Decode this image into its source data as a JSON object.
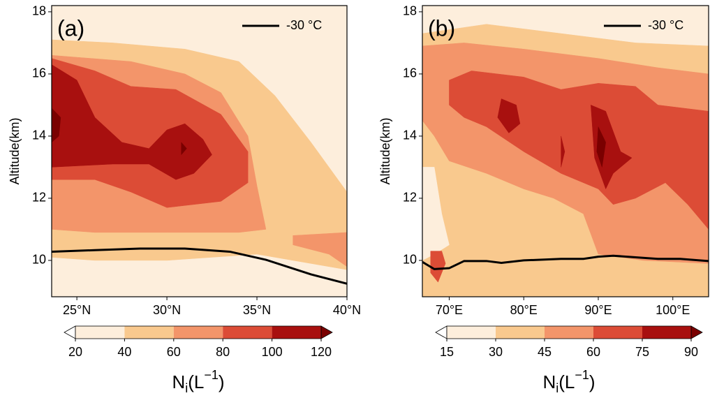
{
  "chart_data": [
    {
      "type": "contour",
      "panel_label": "(a)",
      "ylabel": "Altitude(km)",
      "xlim": [
        23.6,
        40
      ],
      "ylim": [
        8.83,
        18.2
      ],
      "xticks": [
        {
          "value": 25,
          "label": "25°N"
        },
        {
          "value": 30,
          "label": "30°N"
        },
        {
          "value": 35,
          "label": "35°N"
        },
        {
          "value": 40,
          "label": "40°N"
        }
      ],
      "yticks": [
        10,
        12,
        14,
        16,
        18
      ],
      "levels": [
        20,
        40,
        60,
        80,
        100,
        120
      ],
      "colors": [
        "#fdeedc",
        "#f9c98e",
        "#f3956a",
        "#dc4c36",
        "#a8100f"
      ],
      "under_color": "#ffffff",
      "over_color": "#7a0000",
      "colorbar_label": {
        "text": "N",
        "subscript": "i",
        "unit": "(L",
        "exponent": "−1",
        "close": ")"
      },
      "regions": [
        {
          "level": 0,
          "x": [
            23.6,
            40,
            40,
            23.6
          ],
          "y": [
            18.2,
            18.2,
            8.83,
            8.83
          ]
        },
        {
          "level": 1,
          "x": [
            23.6,
            27,
            31,
            34,
            36,
            38,
            40,
            40,
            38,
            35,
            30,
            26,
            23.6
          ],
          "y": [
            17.1,
            17.0,
            16.8,
            16.4,
            15.3,
            13.8,
            12.2,
            9.7,
            9.9,
            10.2,
            10.0,
            10.0,
            10.1
          ]
        },
        {
          "level": 2,
          "x": [
            23.6,
            28,
            31,
            33,
            34.5,
            35,
            35.5,
            34,
            30,
            26,
            23.6
          ],
          "y": [
            16.6,
            16.4,
            16.0,
            15.4,
            14.0,
            12.4,
            11.0,
            10.9,
            10.9,
            10.9,
            11.0
          ]
        },
        {
          "level": 2,
          "x": [
            37,
            40,
            40,
            39,
            37
          ],
          "y": [
            10.8,
            10.9,
            9.8,
            10.2,
            10.5
          ]
        },
        {
          "level": 3,
          "x": [
            23.6,
            26,
            28,
            30.5,
            33,
            34.5,
            34.5,
            33,
            30,
            28,
            26,
            23.6
          ],
          "y": [
            16.5,
            16.1,
            15.6,
            15.5,
            14.7,
            13.5,
            12.5,
            11.9,
            11.7,
            12.2,
            12.6,
            12.6
          ]
        },
        {
          "level": 4,
          "x": [
            23.6,
            25,
            26,
            27.5,
            29,
            30,
            31,
            32,
            32.5,
            31.5,
            30.5,
            29,
            27,
            23.6
          ],
          "y": [
            16.3,
            15.8,
            14.6,
            13.8,
            13.6,
            14.2,
            14.4,
            13.9,
            13.4,
            12.8,
            12.6,
            13.1,
            13.1,
            13.0
          ]
        },
        {
          "level": 5,
          "x": [
            23.6,
            24.1,
            24.0,
            23.6
          ],
          "y": [
            14.9,
            14.6,
            14.0,
            13.8
          ]
        },
        {
          "level": 5,
          "x": [
            30.8,
            31.1,
            30.8
          ],
          "y": [
            13.8,
            13.6,
            13.4
          ]
        }
      ],
      "legend": "upper right",
      "series": [
        {
          "name": "-30 °C",
          "color": "#000000",
          "x": [
            23.6,
            26,
            28.5,
            31,
            33.5,
            35.5,
            38,
            40
          ],
          "values": [
            10.28,
            10.33,
            10.38,
            10.38,
            10.28,
            10.02,
            9.55,
            9.25
          ]
        }
      ]
    },
    {
      "type": "contour",
      "panel_label": "(b)",
      "ylabel": "Altitude(km)",
      "xlim": [
        66.4,
        104.8
      ],
      "ylim": [
        8.83,
        18.2
      ],
      "xticks": [
        {
          "value": 70,
          "label": "70°E"
        },
        {
          "value": 80,
          "label": "80°E"
        },
        {
          "value": 90,
          "label": "90°E"
        },
        {
          "value": 100,
          "label": "100°E"
        }
      ],
      "yticks": [
        10,
        12,
        14,
        16,
        18
      ],
      "levels": [
        15,
        30,
        45,
        60,
        75,
        90
      ],
      "colors": [
        "#fdeedc",
        "#f9c98e",
        "#f3956a",
        "#dc4c36",
        "#a8100f"
      ],
      "under_color": "#ffffff",
      "over_color": "#7a0000",
      "colorbar_label": {
        "text": "N",
        "subscript": "i",
        "unit": "(L",
        "exponent": "−1",
        "close": ")"
      },
      "regions": [
        {
          "level": 0,
          "x": [
            66.4,
            104.8,
            104.8,
            66.4
          ],
          "y": [
            18.2,
            18.2,
            8.83,
            8.83
          ]
        },
        {
          "level": 1,
          "x": [
            66.4,
            75,
            85,
            95,
            104.8,
            104.8,
            66.4
          ],
          "y": [
            17.3,
            17.6,
            17.3,
            17.0,
            16.9,
            8.83,
            8.83
          ]
        },
        {
          "level": 0,
          "x": [
            66.4,
            68,
            69,
            70,
            68,
            66.4
          ],
          "y": [
            13.0,
            13.0,
            11.5,
            10.5,
            10.2,
            10.0
          ]
        },
        {
          "level": 2,
          "x": [
            66.4,
            72,
            80,
            90,
            98,
            104.8,
            104.8,
            96,
            90,
            88,
            84,
            80,
            75,
            70,
            68,
            66.4
          ],
          "y": [
            16.9,
            17.0,
            16.8,
            16.5,
            16.2,
            16.0,
            9.9,
            10.0,
            10.2,
            11.5,
            12.0,
            12.3,
            12.8,
            13.2,
            14.0,
            14.5
          ]
        },
        {
          "level": 3,
          "x": [
            70,
            73,
            80,
            85,
            90,
            95,
            98,
            104.8,
            104.8,
            102,
            99,
            95,
            92,
            90,
            85,
            80,
            75,
            72,
            70
          ],
          "y": [
            15.8,
            16.1,
            15.9,
            15.5,
            15.7,
            15.6,
            15.0,
            14.8,
            11.0,
            11.8,
            12.5,
            12.0,
            11.8,
            12.3,
            12.8,
            13.5,
            14.3,
            14.6,
            15.0
          ]
        },
        {
          "level": 3,
          "x": [
            67.5,
            69,
            69.5,
            68.5,
            67.5
          ],
          "y": [
            10.3,
            10.3,
            9.9,
            9.3,
            9.6
          ]
        },
        {
          "level": 4,
          "x": [
            77,
            79,
            79.5,
            78,
            76.5
          ],
          "y": [
            15.2,
            15.0,
            14.4,
            14.1,
            14.6
          ]
        },
        {
          "level": 4,
          "x": [
            89,
            91,
            93,
            94.5,
            92,
            91,
            89.5
          ],
          "y": [
            15.0,
            14.8,
            13.5,
            13.3,
            12.8,
            12.3,
            13.3
          ]
        },
        {
          "level": 4,
          "x": [
            85,
            85.5,
            85
          ],
          "y": [
            14.0,
            13.5,
            13.0
          ]
        },
        {
          "level": 5,
          "x": [
            90,
            91,
            90.5,
            89.8
          ],
          "y": [
            14.3,
            13.8,
            13.0,
            13.5
          ]
        }
      ],
      "legend": "upper right",
      "series": [
        {
          "name": "-30 °C",
          "color": "#000000",
          "x": [
            66.4,
            68,
            70,
            72,
            75,
            77,
            80,
            85,
            88,
            90,
            92,
            95,
            98,
            101,
            104.8
          ],
          "values": [
            9.95,
            9.72,
            9.75,
            9.98,
            9.98,
            9.92,
            10.0,
            10.05,
            10.05,
            10.12,
            10.15,
            10.1,
            10.05,
            10.05,
            9.98
          ]
        }
      ]
    }
  ]
}
